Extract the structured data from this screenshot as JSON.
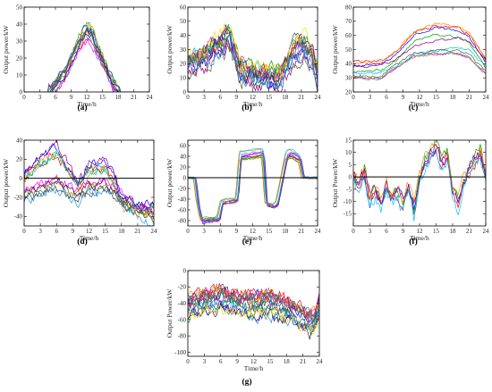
{
  "figure": {
    "colors": [
      "#0000ff",
      "#ff0000",
      "#00a000",
      "#ff8c00",
      "#8b008b",
      "#00bfff",
      "#ff00ff",
      "#556b2f",
      "#1e90ff",
      "#b8860b",
      "#4b0082",
      "#2f4f4f",
      "#ffd700",
      "#008080",
      "#dc143c",
      "#7f7f7f"
    ]
  },
  "chart_data": [
    {
      "id": "a",
      "label": "(a)",
      "type": "line",
      "xlabel": "Time/h",
      "ylabel": "Output power/kW",
      "xlim": [
        0,
        24
      ],
      "ylim": [
        0,
        50
      ],
      "xticks": [
        0,
        3,
        6,
        9,
        12,
        15,
        18,
        21,
        24
      ],
      "yticks": [
        0,
        10,
        20,
        30,
        40,
        50
      ],
      "zero_line": false,
      "n_series": 12,
      "profile": {
        "x": [
          0,
          4.5,
          5.5,
          8,
          11,
          12,
          13,
          15,
          17,
          18.5,
          24
        ],
        "y": [
          0,
          0,
          2,
          14,
          34,
          38,
          35,
          20,
          6,
          0,
          0
        ]
      },
      "spread": 5,
      "noise": 2.0
    },
    {
      "id": "b",
      "label": "(b)",
      "type": "line",
      "xlabel": "Time/h",
      "ylabel": "Output power/kW",
      "xlim": [
        0,
        24
      ],
      "ylim": [
        0,
        60
      ],
      "xticks": [
        0,
        3,
        6,
        9,
        12,
        15,
        18,
        21,
        24
      ],
      "yticks": [
        0,
        10,
        20,
        30,
        40,
        50,
        60
      ],
      "zero_line": false,
      "n_series": 14,
      "profile": {
        "x": [
          0,
          3,
          6,
          7.5,
          8.5,
          9.5,
          12,
          15,
          17,
          18,
          20,
          21.5,
          23,
          24
        ],
        "y": [
          20,
          24,
          34,
          40,
          30,
          15,
          12,
          10,
          10,
          18,
          30,
          32,
          25,
          12
        ]
      },
      "spread": 6,
      "noise": 5.0
    },
    {
      "id": "c",
      "label": "(c)",
      "type": "line",
      "xlabel": "Time/h",
      "ylabel": "Output power/kW",
      "xlim": [
        0,
        24
      ],
      "ylim": [
        20,
        80
      ],
      "xticks": [
        0,
        3,
        6,
        9,
        12,
        15,
        18,
        21,
        24
      ],
      "yticks": [
        20,
        30,
        40,
        50,
        60,
        70,
        80
      ],
      "zero_line": false,
      "n_series": 10,
      "groups": [
        {
          "count": 4,
          "profile": {
            "x": [
              0,
              5,
              8,
              11,
              15,
              19,
              21,
              24
            ],
            "y": [
              39,
              40,
              48,
              61,
              66,
              64,
              60,
              41
            ]
          },
          "spread": 4
        },
        {
          "count": 2,
          "profile": {
            "x": [
              0,
              5,
              8,
              11,
              15,
              19,
              21,
              24
            ],
            "y": [
              37,
              38,
              43,
              52,
              55,
              57,
              55,
              42
            ]
          },
          "spread": 3
        },
        {
          "count": 4,
          "profile": {
            "x": [
              0,
              5,
              8,
              11,
              15,
              19,
              21,
              24
            ],
            "y": [
              30,
              30,
              38,
              45,
              47,
              47,
              44,
              33
            ]
          },
          "spread": 2
        }
      ],
      "noise": 0.8
    },
    {
      "id": "d",
      "label": "(d)",
      "type": "line",
      "xlabel": "Time/h",
      "ylabel": "Output power/kW",
      "xlim": [
        0,
        24
      ],
      "ylim": [
        -50,
        40
      ],
      "xticks": [
        0,
        3,
        6,
        9,
        12,
        15,
        18,
        21,
        24
      ],
      "yticks": [
        -40,
        -20,
        0,
        20,
        40
      ],
      "zero_line": true,
      "n_series": 12,
      "groups": [
        {
          "count": 6,
          "profile": {
            "x": [
              0,
              3,
              6,
              8,
              10,
              12,
              15,
              17,
              18,
              21,
              24
            ],
            "y": [
              0,
              18,
              28,
              10,
              -10,
              10,
              12,
              -5,
              -25,
              -35,
              -30
            ]
          },
          "spread": 6
        },
        {
          "count": 6,
          "profile": {
            "x": [
              0,
              3,
              6,
              8,
              10,
              12,
              15,
              17,
              18,
              21,
              24
            ],
            "y": [
              -18,
              -12,
              -5,
              -12,
              -18,
              -10,
              -8,
              -15,
              -22,
              -32,
              -40
            ]
          },
          "spread": 6
        }
      ],
      "noise": 4.0
    },
    {
      "id": "e",
      "label": "(e)",
      "type": "line",
      "xlabel": "Time/h",
      "ylabel": "Output power/kW",
      "xlim": [
        0,
        24
      ],
      "ylim": [
        -90,
        70
      ],
      "xticks": [
        0,
        3,
        6,
        9,
        12,
        15,
        18,
        21,
        24
      ],
      "yticks": [
        -80,
        -60,
        -40,
        -20,
        0,
        20,
        40,
        60
      ],
      "zero_line": true,
      "n_series": 10,
      "profile": {
        "x": [
          0,
          1.4,
          2,
          2.6,
          5.8,
          6.4,
          9.2,
          9.8,
          14,
          14.6,
          16,
          16.6,
          18.4,
          19,
          20.8,
          21.4,
          24
        ],
        "y": [
          0,
          0,
          -50,
          -78,
          -75,
          -45,
          -40,
          40,
          45,
          -48,
          -52,
          -48,
          40,
          45,
          35,
          0,
          0
        ]
      },
      "shift": 0.5,
      "spread": 7,
      "noise": 1.2
    },
    {
      "id": "f",
      "label": "(f)",
      "type": "line",
      "xlabel": "Time/h",
      "ylabel": "Output Power/kW",
      "xlim": [
        0,
        24
      ],
      "ylim": [
        -20,
        15
      ],
      "xticks": [
        0,
        3,
        6,
        9,
        12,
        15,
        18,
        21,
        24
      ],
      "yticks": [
        -15,
        -10,
        -5,
        0,
        5,
        10,
        15
      ],
      "zero_line": true,
      "n_series": 6,
      "profile": {
        "x": [
          0,
          1,
          2,
          3,
          4,
          5,
          6,
          7,
          8,
          9,
          10,
          11,
          12,
          13,
          14,
          15,
          16,
          17,
          18,
          19,
          20,
          21,
          22,
          23,
          24
        ],
        "y": [
          0,
          -5,
          2,
          -10,
          -6,
          -12,
          -4,
          -11,
          -7,
          -12,
          -5,
          -14,
          -2,
          5,
          9,
          12,
          5,
          8,
          -6,
          -11,
          -2,
          2,
          6,
          10,
          -2
        ]
      },
      "spread": 2.5,
      "noise": 2.0
    },
    {
      "id": "g",
      "label": "(g)",
      "type": "line",
      "xlabel": "Time/h",
      "ylabel": "Output Power/kW",
      "xlim": [
        0,
        24
      ],
      "ylim": [
        -105,
        0
      ],
      "xticks": [
        0,
        3,
        6,
        9,
        12,
        15,
        18,
        21,
        24
      ],
      "yticks": [
        -100,
        -80,
        -60,
        -40,
        -20,
        0
      ],
      "zero_line": false,
      "n_series": 16,
      "profile": {
        "x": [
          0,
          3,
          6,
          9,
          12,
          15,
          18,
          21,
          23,
          24
        ],
        "y": [
          -45,
          -38,
          -35,
          -40,
          -42,
          -40,
          -48,
          -58,
          -65,
          -45
        ]
      },
      "spread": 12,
      "noise": 7.0
    }
  ]
}
